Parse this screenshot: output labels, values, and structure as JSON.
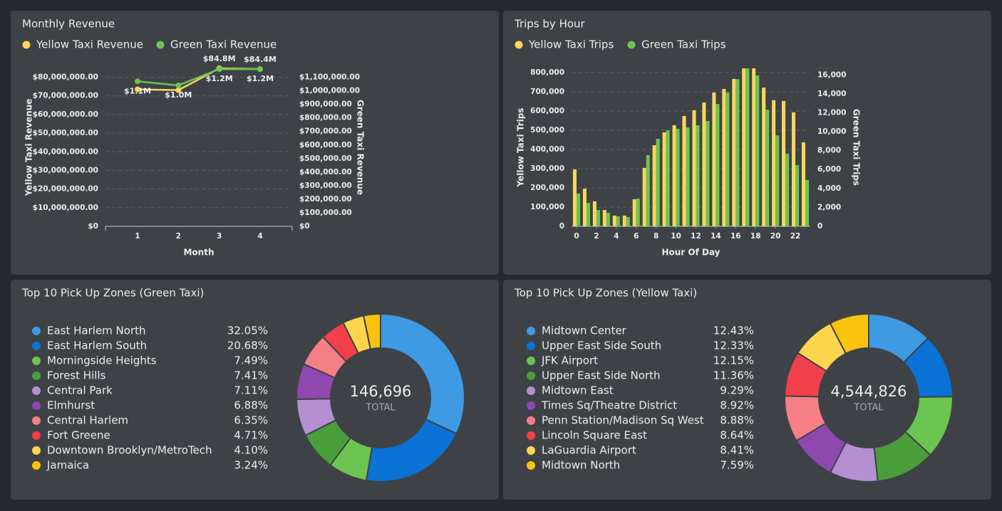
{
  "chart_data": [
    {
      "type": "line",
      "title": "Monthly Revenue",
      "categories": [
        "1",
        "2",
        "3",
        "4"
      ],
      "xlabel": "Month",
      "ylabel": "Yellow Taxi Revenue",
      "y2label": "Green Taxi Revenue",
      "ylim": [
        0,
        84800000
      ],
      "yticks": [
        {
          "value": 0,
          "label": "$0"
        },
        {
          "value": 10000000,
          "label": "$10,000,000.00"
        },
        {
          "value": 20000000,
          "label": "$20,000,000.00"
        },
        {
          "value": 30000000,
          "label": "$30,000,000.00"
        },
        {
          "value": 40000000,
          "label": "$40,000,000.00"
        },
        {
          "value": 50000000,
          "label": "$50,000,000.00"
        },
        {
          "value": 60000000,
          "label": "$60,000,000.00"
        },
        {
          "value": 70000000,
          "label": "$70,000,000.00"
        },
        {
          "value": 80000000,
          "label": "$80,000,000.00"
        }
      ],
      "y2lim": [
        0,
        1166000
      ],
      "y2ticks": [
        {
          "value": 0,
          "label": "$0"
        },
        {
          "value": 100000,
          "label": "$100,000.00"
        },
        {
          "value": 200000,
          "label": "$200,000.00"
        },
        {
          "value": 300000,
          "label": "$300,000.00"
        },
        {
          "value": 400000,
          "label": "$400,000.00"
        },
        {
          "value": 500000,
          "label": "$500,000.00"
        },
        {
          "value": 600000,
          "label": "$600,000.00"
        },
        {
          "value": 700000,
          "label": "$700,000.00"
        },
        {
          "value": 800000,
          "label": "$800,000.00"
        },
        {
          "value": 900000,
          "label": "$900,000.00"
        },
        {
          "value": 1000000,
          "label": "$1,000,000.00"
        },
        {
          "value": 1100000,
          "label": "$1,100,000.00"
        }
      ],
      "grid": true,
      "series": [
        {
          "name": "Yellow Taxi Revenue",
          "color": "#f9d65c",
          "values": [
            73500000,
            73100000,
            84800000,
            84400000
          ],
          "value_labels": [
            null,
            null,
            "$84.8M",
            "$84.4M"
          ]
        },
        {
          "name": "Green Taxi Revenue",
          "color": "#6cc551",
          "axis": "y2",
          "values": [
            1070000,
            1040000,
            1160000,
            1160000
          ],
          "value_labels": [
            "$1.1M",
            "$1.0M",
            "$1.2M",
            "$1.2M"
          ]
        }
      ]
    },
    {
      "type": "bar",
      "title": "Trips by Hour",
      "x": [
        0,
        1,
        2,
        3,
        4,
        5,
        6,
        7,
        8,
        9,
        10,
        11,
        12,
        13,
        14,
        15,
        16,
        17,
        18,
        19,
        20,
        21,
        22,
        23
      ],
      "xlim": [
        -0.5,
        23.5
      ],
      "xticks": [
        0,
        2,
        4,
        6,
        8,
        10,
        12,
        14,
        16,
        18,
        20,
        22
      ],
      "xlabel": "Hour Of Day",
      "ylabel": "Yellow Taxi Trips",
      "y2label": "Green Taxi Trips",
      "ylim": [
        0,
        822000
      ],
      "yticks": [
        0,
        {
          "value": 100000,
          "label": "100,000"
        },
        {
          "value": 200000,
          "label": "200,000"
        },
        {
          "value": 300000,
          "label": "300,000"
        },
        {
          "value": 400000,
          "label": "400,000"
        },
        {
          "value": 500000,
          "label": "500,000"
        },
        {
          "value": 600000,
          "label": "600,000"
        },
        {
          "value": 700000,
          "label": "700,000"
        },
        {
          "value": 800000,
          "label": "800,000"
        }
      ],
      "y2lim": [
        0,
        16700
      ],
      "y2ticks": [
        0,
        {
          "value": 2000,
          "label": "2,000"
        },
        {
          "value": 4000,
          "label": "4,000"
        },
        {
          "value": 6000,
          "label": "6,000"
        },
        {
          "value": 8000,
          "label": "8,000"
        },
        {
          "value": 10000,
          "label": "10,000"
        },
        {
          "value": 12000,
          "label": "12,000"
        },
        {
          "value": 14000,
          "label": "14,000"
        },
        {
          "value": 16000,
          "label": "16,000"
        }
      ],
      "grid": true,
      "series": [
        {
          "name": "Yellow Taxi Trips",
          "color": "#f9d65c",
          "values": [
            296000,
            196000,
            130000,
            85000,
            56000,
            56000,
            141000,
            304000,
            422000,
            489000,
            526000,
            574000,
            604000,
            644000,
            696000,
            715000,
            767000,
            822000,
            822000,
            722000,
            656000,
            652000,
            593000,
            437000
          ]
        },
        {
          "name": "Green Taxi Trips",
          "color": "#6cc551",
          "axis": "y2",
          "values": [
            3460,
            2480,
            1730,
            1430,
            1050,
            980,
            2930,
            7520,
            9250,
            10150,
            10300,
            10450,
            10680,
            11130,
            12930,
            14140,
            15560,
            16690,
            15940,
            12330,
            9620,
            7670,
            6470,
            4890
          ]
        }
      ]
    },
    {
      "type": "donut",
      "title": "Top 10 Pick Up Zones (Green Taxi)",
      "categories": [
        "East Harlem North",
        "East Harlem South",
        "Morningside Heights",
        "Forest Hills",
        "Central Park",
        "Elmhurst",
        "Central Harlem",
        "Fort Greene",
        "Downtown Brooklyn/MetroTech",
        "Jamaica"
      ],
      "values": [
        32.05,
        20.68,
        7.49,
        7.41,
        7.11,
        6.88,
        6.35,
        4.71,
        4.1,
        3.24
      ],
      "value_labels": [
        "32.05%",
        "20.68%",
        "7.49%",
        "7.41%",
        "7.11%",
        "6.88%",
        "6.35%",
        "4.71%",
        "4.10%",
        "3.24%"
      ],
      "colors": [
        "#3d9ae3",
        "#0b72d6",
        "#6cc551",
        "#4a9e3a",
        "#b48fd1",
        "#8e48b0",
        "#f57f87",
        "#f2404a",
        "#fcd54d",
        "#fbc20f"
      ],
      "total": {
        "value": 146696,
        "label": "146,696"
      },
      "total_caption": "TOTAL"
    },
    {
      "type": "donut",
      "title": "Top 10 Pick Up Zones (Yellow Taxi)",
      "categories": [
        "Midtown Center",
        "Upper East Side South",
        "JFK Airport",
        "Upper East Side North",
        "Midtown East",
        "Times Sq/Theatre District",
        "Penn Station/Madison Sq West",
        "Lincoln Square East",
        "LaGuardia Airport",
        "Midtown North"
      ],
      "values": [
        12.43,
        12.33,
        12.15,
        11.36,
        9.29,
        8.92,
        8.88,
        8.64,
        8.41,
        7.59
      ],
      "value_labels": [
        "12.43%",
        "12.33%",
        "12.15%",
        "11.36%",
        "9.29%",
        "8.92%",
        "8.88%",
        "8.64%",
        "8.41%",
        "7.59%"
      ],
      "colors": [
        "#3d9ae3",
        "#0b72d6",
        "#6cc551",
        "#4a9e3a",
        "#b48fd1",
        "#8e48b0",
        "#f57f87",
        "#f2404a",
        "#fcd54d",
        "#fbc20f"
      ],
      "total": {
        "value": 4544826,
        "label": "4,544,826"
      },
      "total_caption": "TOTAL"
    }
  ]
}
